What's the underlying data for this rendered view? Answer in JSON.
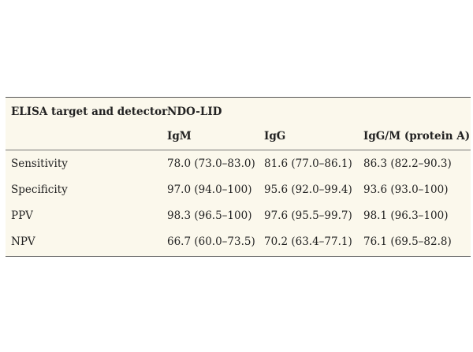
{
  "table": {
    "header": {
      "label": "ELISA target and detector",
      "group": "NDO-LID",
      "columns": [
        "IgM",
        "IgG",
        "IgG/M (protein A)"
      ]
    },
    "rows": [
      [
        "Sensitivity",
        "78.0 (73.0–83.0)",
        "81.6 (77.0–86.1)",
        "86.3 (82.2–90.3)"
      ],
      [
        "Specificity",
        "97.0 (94.0–100)",
        "95.6 (92.0–99.4)",
        "93.6 (93.0–100)"
      ],
      [
        "PPV",
        "98.3 (96.5–100)",
        "97.6 (95.5–99.7)",
        "98.1 (96.3–100)"
      ],
      [
        "NPV",
        "66.7 (60.0–73.5)",
        "70.2 (63.4–77.1)",
        "76.1 (69.5–82.8)"
      ]
    ]
  }
}
